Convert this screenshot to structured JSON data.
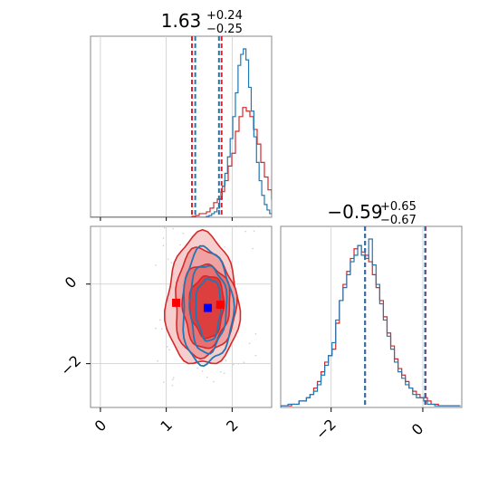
{
  "chart_data": {
    "type": "corner",
    "params": [
      {
        "key": "p0",
        "median": "1.63",
        "plus": "+0.24",
        "minus": "−0.25",
        "xlim": [
          -0.15,
          2.6
        ],
        "ticks": [
          0,
          1,
          2
        ],
        "tick_labels": [
          "0",
          "1",
          "2"
        ]
      },
      {
        "key": "p1",
        "median": "−0.59",
        "plus": "+0.65",
        "minus": "−0.67",
        "xlim": [
          -3.1,
          0.85
        ],
        "ticks": [
          -2,
          0
        ],
        "tick_labels": [
          "−2",
          "0"
        ]
      }
    ],
    "joint_ylim": [
      -3.1,
      1.45
    ],
    "joint_yticks": [
      0,
      -2
    ],
    "joint_ytick_labels": [
      "0",
      "−2"
    ],
    "series": [
      {
        "color": "#d62728",
        "marginal_quantiles_p0": [
          1.39,
          1.84
        ],
        "marginal_quantiles_p1": [
          -1.26,
          0.06
        ],
        "hist_p0": {
          "bin_start": -0.15,
          "bin_width": 0.055,
          "counts": [
            0,
            0,
            0,
            0,
            0,
            0,
            0,
            0,
            0,
            0,
            0,
            0,
            0,
            0,
            0,
            0,
            0,
            0,
            0,
            0,
            0,
            0,
            0,
            0,
            0,
            0,
            0,
            0,
            0.5,
            1,
            2,
            2,
            3,
            5,
            8,
            10,
            14,
            20,
            28,
            35,
            47,
            55,
            60,
            58,
            55,
            48,
            40,
            30,
            22,
            15,
            10,
            7,
            5,
            3,
            2,
            1,
            0,
            0,
            0,
            0
          ]
        },
        "hist_p1": {
          "bin_start": -3.1,
          "bin_width": 0.08,
          "counts": [
            0.5,
            0.5,
            0.5,
            1,
            1,
            2,
            2,
            3,
            4,
            6,
            8,
            11,
            14,
            16,
            18,
            26,
            33,
            38,
            42,
            46,
            49,
            50,
            48,
            47,
            45,
            41,
            37,
            33,
            28,
            23,
            19,
            15,
            12,
            10,
            8,
            6,
            5,
            4,
            3,
            3,
            2,
            1,
            1,
            0.5,
            0.5,
            0.5,
            0.5,
            0.5,
            0.5
          ]
        },
        "joint_contours": [
          {
            "center": [
              1.55,
              -0.45
            ],
            "radii": [
              0.55,
              1.65
            ]
          },
          {
            "center": [
              1.58,
              -0.48
            ],
            "radii": [
              0.46,
              1.35
            ]
          },
          {
            "center": [
              1.6,
              -0.52
            ],
            "radii": [
              0.36,
              1.05
            ]
          },
          {
            "center": [
              1.62,
              -0.55
            ],
            "radii": [
              0.26,
              0.78
            ]
          }
        ],
        "markers": [
          [
            1.15,
            -0.47
          ],
          [
            1.82,
            -0.52
          ]
        ]
      },
      {
        "color": "#1f77b4",
        "marginal_quantiles_p0": [
          1.44,
          1.8
        ],
        "marginal_quantiles_p1": [
          -1.26,
          0.05
        ],
        "hist_p0": {
          "bin_start": -0.15,
          "bin_width": 0.04,
          "counts": [
            0,
            0,
            0,
            0,
            0,
            0,
            0,
            0,
            0,
            0,
            0,
            0,
            0,
            0,
            0,
            0,
            0,
            0,
            0,
            0,
            0,
            0,
            0,
            0,
            0,
            0,
            0,
            0,
            0,
            0,
            0,
            0,
            0,
            0,
            0,
            0,
            0,
            0,
            0,
            0,
            0,
            0,
            0,
            0,
            0.5,
            1,
            2,
            3,
            5,
            10,
            17,
            24,
            33,
            43,
            55,
            68,
            83,
            89,
            92,
            86,
            71,
            58,
            44,
            30,
            20,
            12,
            7,
            4,
            2,
            1,
            0.5,
            0,
            0,
            0,
            0
          ]
        },
        "hist_p1": {
          "bin_start": -3.1,
          "bin_width": 0.08,
          "counts": [
            0.5,
            0.5,
            1,
            1,
            1,
            2,
            2,
            3,
            4,
            5,
            7,
            10,
            13,
            16,
            20,
            27,
            33,
            37,
            41,
            45,
            47,
            50,
            47,
            46,
            52,
            44,
            38,
            32,
            27,
            22,
            18,
            14,
            11,
            9,
            7,
            6,
            4,
            3,
            3,
            2,
            1,
            1,
            0.5,
            0.5,
            0.5,
            0.5,
            0.5,
            0.5,
            0.5
          ]
        },
        "joint_contours": [
          {
            "center": [
              1.62,
              -0.58
            ],
            "radii": [
              0.38,
              1.45
            ]
          },
          {
            "center": [
              1.63,
              -0.6
            ],
            "radii": [
              0.28,
              1.1
            ]
          },
          {
            "center": [
              1.64,
              -0.62
            ],
            "radii": [
              0.19,
              0.78
            ]
          }
        ],
        "markers": [
          [
            1.63,
            -0.6
          ]
        ]
      }
    ]
  }
}
